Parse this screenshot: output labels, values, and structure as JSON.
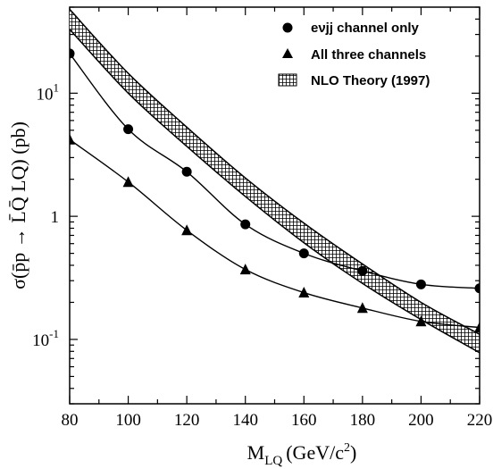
{
  "chart_data": {
    "type": "line",
    "xlabel": {
      "main": "M",
      "sub": "LQ",
      "unit": "(GeV/c",
      "sup": "2",
      "close": ")"
    },
    "ylabel": "σ(p̄p → L̄Q̄ LQ)  (pb)",
    "yscale": "log",
    "xlim": [
      80,
      220
    ],
    "ylim": [
      0.03,
      50
    ],
    "xticks": [
      80,
      100,
      120,
      140,
      160,
      180,
      200,
      220
    ],
    "xtick_labels": [
      "80",
      "100",
      "120",
      "140",
      "160",
      "180",
      "200",
      "220"
    ],
    "yticks": [
      0.1,
      1,
      10
    ],
    "ytick_labels": [
      {
        "base": "10",
        "exp": "-1"
      },
      {
        "base": "1",
        "exp": ""
      },
      {
        "base": "10",
        "exp": "1"
      }
    ],
    "legend_position": "top-right",
    "series": [
      {
        "name": "eνjj channel only",
        "marker": "circle",
        "x": [
          80,
          100,
          120,
          140,
          160,
          180,
          200,
          220
        ],
        "y": [
          21,
          5.1,
          2.3,
          0.86,
          0.5,
          0.36,
          0.28,
          0.26
        ]
      },
      {
        "name": "All three channels",
        "marker": "triangle",
        "x": [
          80,
          100,
          120,
          140,
          160,
          180,
          200,
          220
        ],
        "y": [
          4.2,
          1.9,
          0.77,
          0.37,
          0.24,
          0.18,
          0.14,
          0.125
        ]
      },
      {
        "name": "NLO Theory (1997)",
        "marker": "band",
        "x": [
          80,
          100,
          120,
          140,
          160,
          180,
          200,
          220
        ],
        "y_low": [
          33,
          10,
          3.7,
          1.45,
          0.61,
          0.285,
          0.145,
          0.078
        ],
        "y_high": [
          48,
          14.5,
          5.3,
          2.05,
          0.88,
          0.41,
          0.2,
          0.11
        ]
      }
    ]
  }
}
